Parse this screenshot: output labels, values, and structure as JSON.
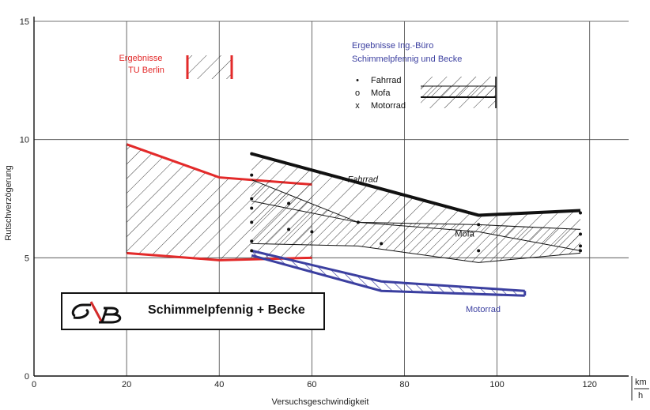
{
  "chart_data": {
    "type": "area",
    "xlabel": "Versuchsgeschwindigkeit",
    "ylabel": "Rutschverzögerung",
    "unit_top": "km",
    "unit_bottom": "h",
    "xlim": [
      0,
      125
    ],
    "ylim": [
      0,
      15
    ],
    "xticks": [
      0,
      20,
      40,
      60,
      80,
      100,
      120
    ],
    "yticks": [
      0,
      5,
      10,
      15
    ],
    "grid": true,
    "legend_tu": {
      "line1": "Ergebnisse",
      "line2": "TU Berlin",
      "color": "#e32a2a"
    },
    "legend_ib": {
      "line1": "Ergebnisse Ing.-Büro",
      "line2": "Schimmelpfennig und Becke",
      "color": "#3b3fa0",
      "entries": [
        {
          "marker": "•",
          "label": "Fahrrad"
        },
        {
          "marker": "o",
          "label": "Mofa"
        },
        {
          "marker": "x",
          "label": "Motorrad"
        }
      ]
    },
    "tu_band": {
      "color": "#e32a2a",
      "upper": [
        [
          20,
          9.8
        ],
        [
          40,
          8.4
        ],
        [
          60,
          8.1
        ]
      ],
      "lower": [
        [
          20,
          5.2
        ],
        [
          40,
          4.9
        ],
        [
          60,
          5.0
        ]
      ]
    },
    "series": [
      {
        "name": "Fahrrad",
        "color": "#111111",
        "upper": [
          [
            47,
            9.4
          ],
          [
            96,
            6.8
          ],
          [
            118,
            7.0
          ]
        ],
        "lower": [
          [
            47,
            7.4
          ],
          [
            70,
            6.5
          ],
          [
            96,
            6.1
          ],
          [
            118,
            5.3
          ]
        ]
      },
      {
        "name": "Mofa",
        "color": "#111111",
        "upper": [
          [
            47,
            8.3
          ],
          [
            70,
            6.5
          ],
          [
            96,
            6.4
          ],
          [
            118,
            6.2
          ]
        ],
        "lower": [
          [
            47,
            5.6
          ],
          [
            70,
            5.5
          ],
          [
            96,
            4.8
          ],
          [
            118,
            5.2
          ]
        ]
      },
      {
        "name": "Motorrad",
        "color": "#3b3fa0",
        "upper": [
          [
            47,
            5.3
          ],
          [
            75,
            4.0
          ],
          [
            106,
            3.6
          ]
        ],
        "lower": [
          [
            47,
            5.1
          ],
          [
            75,
            3.6
          ],
          [
            106,
            3.4
          ]
        ]
      }
    ],
    "points": [
      [
        47,
        9.4
      ],
      [
        47,
        8.5
      ],
      [
        47,
        7.5
      ],
      [
        47,
        7.1
      ],
      [
        47,
        6.5
      ],
      [
        47,
        5.7
      ],
      [
        47,
        5.3
      ],
      [
        55,
        7.3
      ],
      [
        55,
        6.2
      ],
      [
        60,
        6.1
      ],
      [
        70,
        6.5
      ],
      [
        75,
        5.6
      ],
      [
        96,
        6.4
      ],
      [
        96,
        5.3
      ],
      [
        118,
        6.0
      ],
      [
        118,
        5.5
      ],
      [
        118,
        5.3
      ],
      [
        118,
        6.9
      ]
    ]
  },
  "logo": {
    "name": "Schimmelpfennig + Becke"
  }
}
